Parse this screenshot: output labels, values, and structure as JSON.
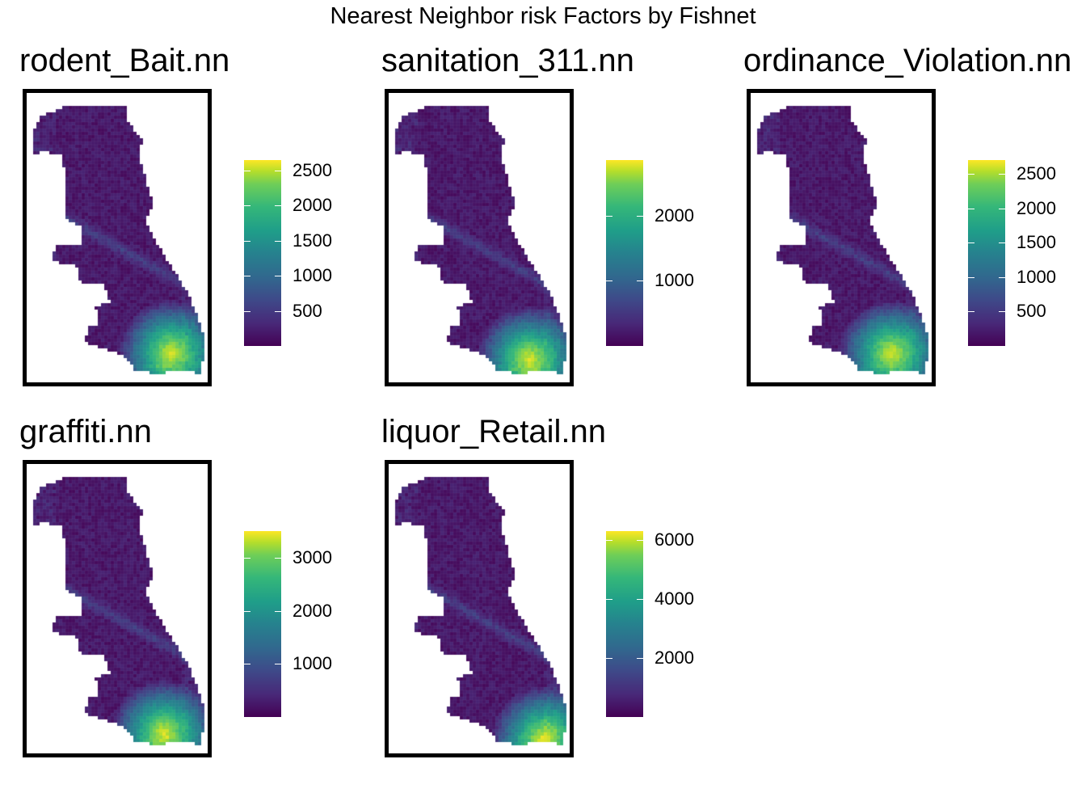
{
  "title": "Nearest Neighbor risk Factors by Fishnet",
  "colors": {
    "colormap": "viridis",
    "frame": "#000000",
    "background": "#ffffff"
  },
  "panels": [
    {
      "name": "rodent_Bait.nn",
      "legend": {
        "min": 0,
        "max": 2650,
        "ticks": [
          500,
          1000,
          1500,
          2000,
          2500
        ]
      }
    },
    {
      "name": "sanitation_311.nn",
      "legend": {
        "min": 0,
        "max": 2850,
        "ticks": [
          1000,
          2000
        ]
      }
    },
    {
      "name": "ordinance_Violation.nn",
      "legend": {
        "min": 0,
        "max": 2700,
        "ticks": [
          500,
          1000,
          1500,
          2000,
          2500
        ]
      }
    },
    {
      "name": "graffiti.nn",
      "legend": {
        "min": 0,
        "max": 3500,
        "ticks": [
          1000,
          2000,
          3000
        ]
      }
    },
    {
      "name": "liquor_Retail.nn",
      "legend": {
        "min": 0,
        "max": 6300,
        "ticks": [
          2000,
          4000,
          6000
        ]
      }
    }
  ]
}
